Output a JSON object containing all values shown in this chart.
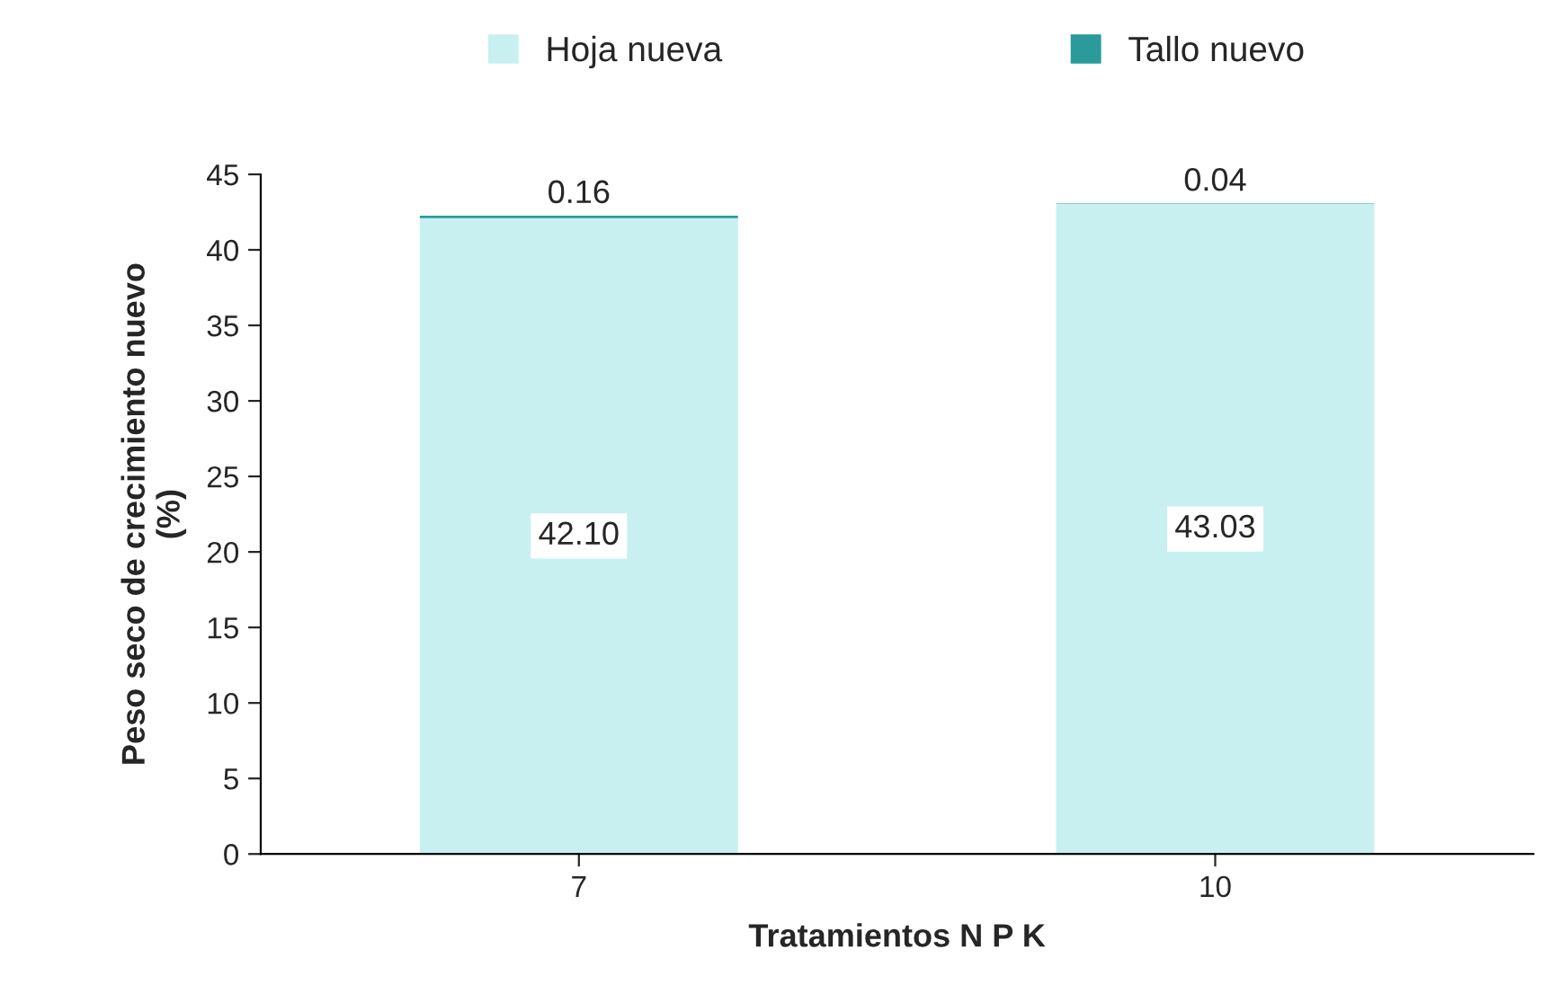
{
  "chart_data": {
    "type": "bar",
    "stacked": true,
    "xlabel": "Tratamientos N P K",
    "ylabel": "Peso seco de crecimiento nuevo\n(%)",
    "categories": [
      "7",
      "10"
    ],
    "series": [
      {
        "name": "Hoja nueva",
        "color": "#c8f0f0",
        "values": [
          42.1,
          43.03
        ],
        "value_labels": [
          "42.10",
          "43.03"
        ]
      },
      {
        "name": "Tallo nuevo",
        "color": "#2a9a9a",
        "values": [
          0.16,
          0.04
        ],
        "value_labels": [
          "0.16",
          "0.04"
        ]
      }
    ],
    "ylim": [
      0,
      45
    ],
    "yticks": [
      0,
      5,
      10,
      15,
      20,
      25,
      30,
      35,
      40,
      45
    ],
    "grid": false,
    "legend": "top"
  }
}
